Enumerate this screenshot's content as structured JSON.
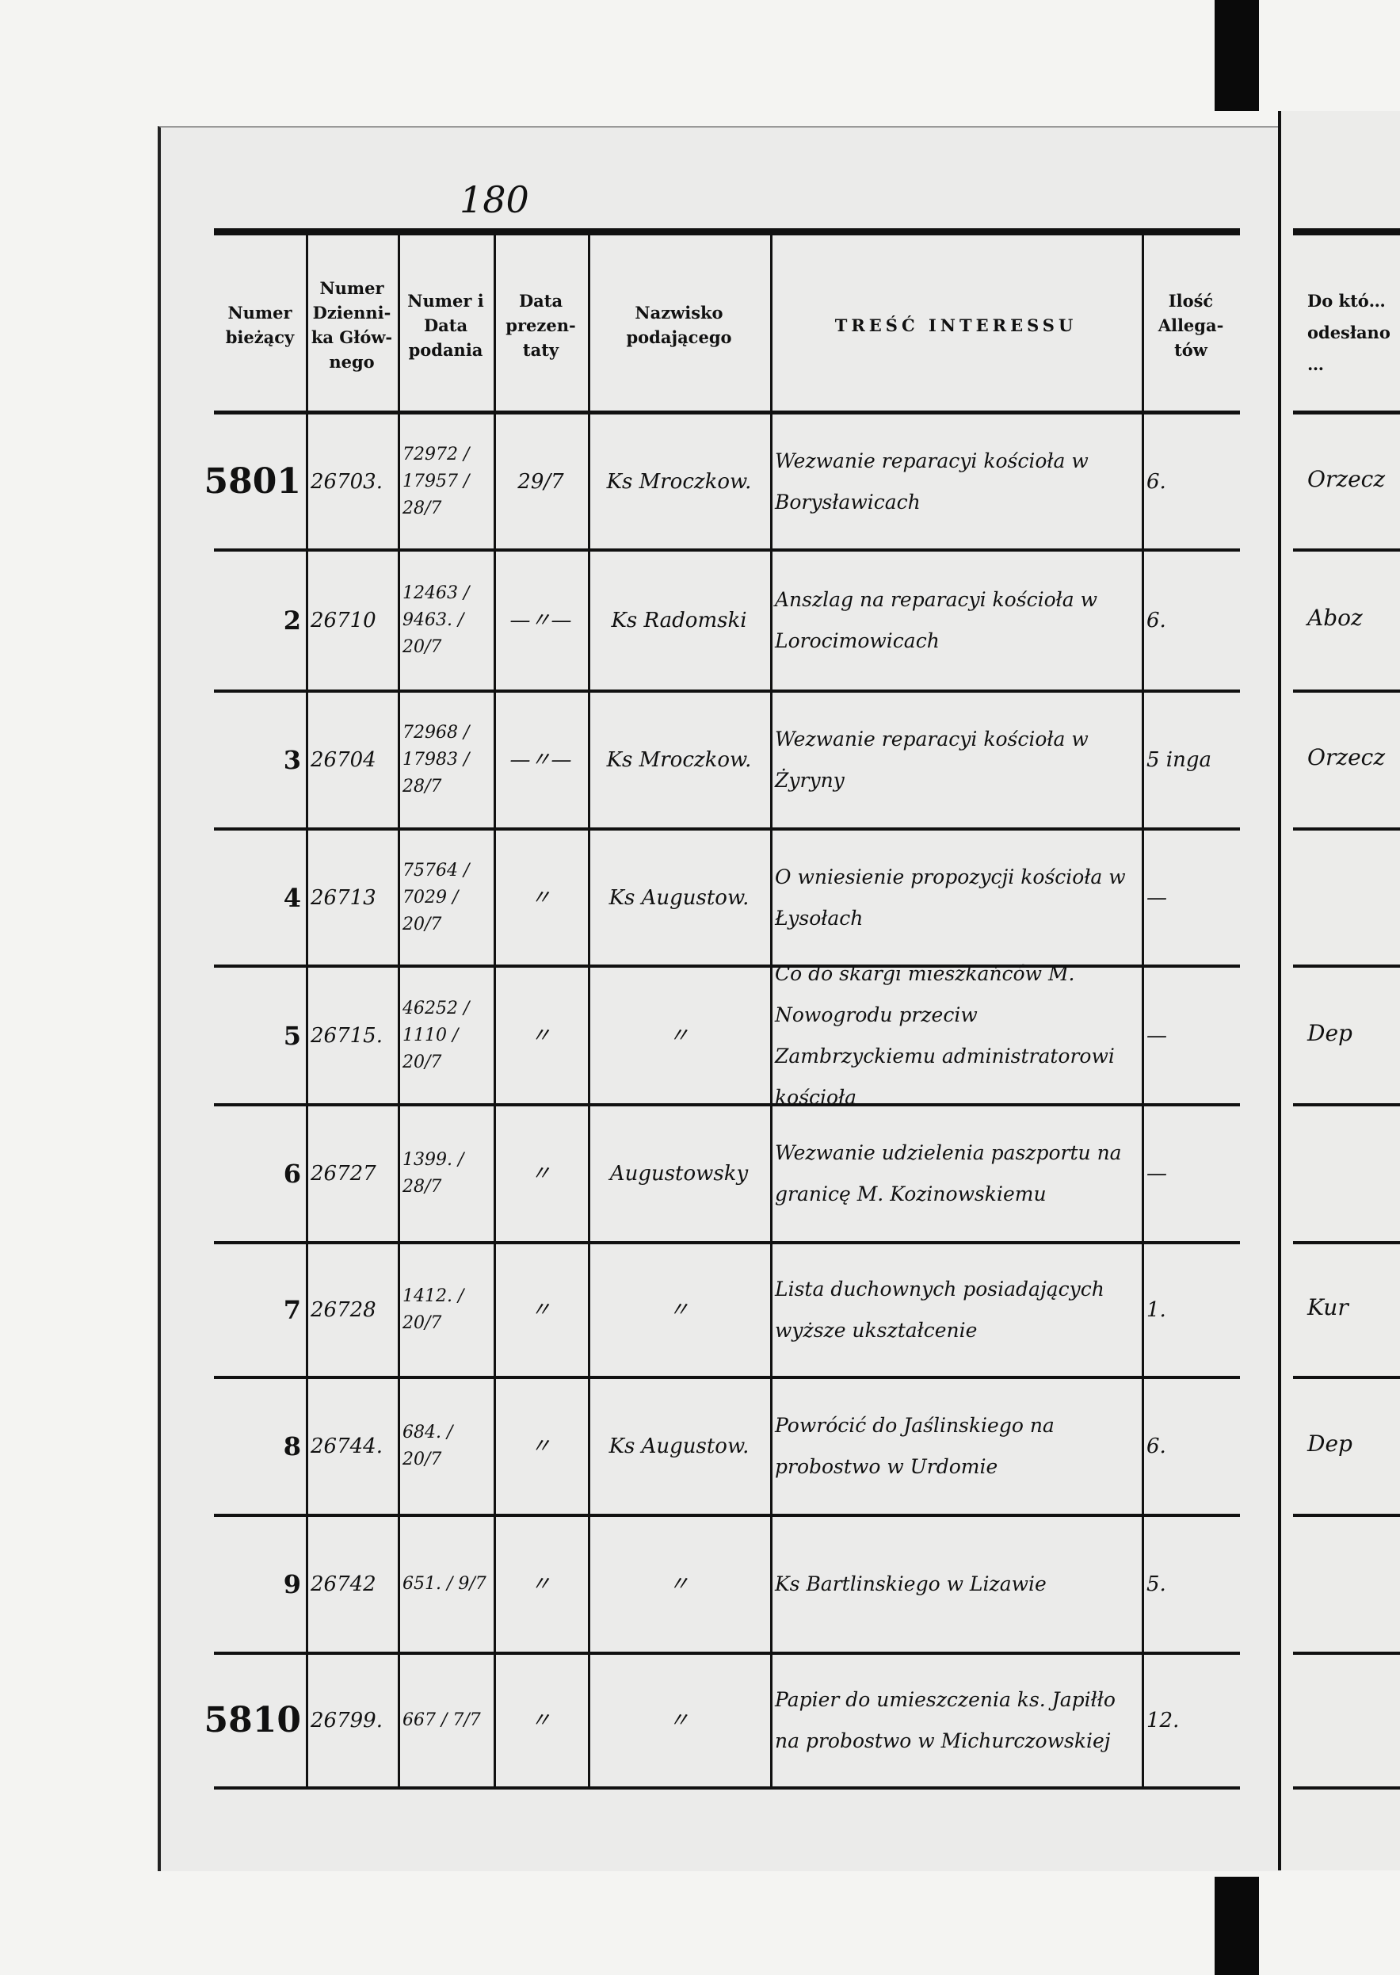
{
  "page_number": "180",
  "headers": [
    "Numer bieżący",
    "Numer Dzienni-ka Głów-nego",
    "Numer i Data podania",
    "Data prezen-taty",
    "Nazwisko podającego",
    "TREŚĆ INTERESSU",
    "Ilość Allega-tów"
  ],
  "right_page_header": "Do któ… odesłano …",
  "rows": [
    {
      "nr": "5801",
      "dz": "26703.",
      "nd": "72972 / 17957 / 28/7",
      "dp": "29/7",
      "name": "Ks Mroczkow.",
      "tresc": "Wezwanie reparacyi kościoła w Borysławicach",
      "alleg": "6.",
      "right": "Orzecz"
    },
    {
      "nr": "2",
      "dz": "26710",
      "nd": "12463 / 9463. / 20/7",
      "dp": "—〃—",
      "name": "Ks Radomski",
      "tresc": "Anszlag na reparacyi kościoła w Lorocimowicach",
      "alleg": "6.",
      "right": "Aboz"
    },
    {
      "nr": "3",
      "dz": "26704",
      "nd": "72968 / 17983 / 28/7",
      "dp": "—〃—",
      "name": "Ks Mroczkow.",
      "tresc": "Wezwanie reparacyi kościoła w Żyryny",
      "alleg": "5 inga",
      "right": "Orzecz"
    },
    {
      "nr": "4",
      "dz": "26713",
      "nd": "75764 / 7029 / 20/7",
      "dp": "〃",
      "name": "Ks Augustow.",
      "tresc": "O wniesienie propozycji kościoła w Łysołach",
      "alleg": "—",
      "right": ""
    },
    {
      "nr": "5",
      "dz": "26715.",
      "nd": "46252 / 1110 / 20/7",
      "dp": "〃",
      "name": "〃",
      "tresc": "Co do skargi mieszkańców M. Nowogrodu przeciw Zambrzyckiemu administratorowi kościoła",
      "alleg": "—",
      "right": "Dep"
    },
    {
      "nr": "6",
      "dz": "26727",
      "nd": "1399. / 28/7",
      "dp": "〃",
      "name": "Augustowsky",
      "tresc": "Wezwanie udzielenia paszportu na granicę M. Kozinowskiemu",
      "alleg": "—",
      "right": ""
    },
    {
      "nr": "7",
      "dz": "26728",
      "nd": "1412. / 20/7",
      "dp": "〃",
      "name": "〃",
      "tresc": "Lista duchownych posiadających wyższe ukształcenie",
      "alleg": "1.",
      "right": "Kur"
    },
    {
      "nr": "8",
      "dz": "26744.",
      "nd": "684. / 20/7",
      "dp": "〃",
      "name": "Ks Augustow.",
      "tresc": "Powrócić do Jaślinskiego na probostwo w Urdomie",
      "alleg": "6.",
      "right": "Dep"
    },
    {
      "nr": "9",
      "dz": "26742",
      "nd": "651. / 9/7",
      "dp": "〃",
      "name": "〃",
      "tresc": "Ks Bartlinskiego w Lizawie",
      "alleg": "5.",
      "right": ""
    },
    {
      "nr": "5810",
      "dz": "26799.",
      "nd": "667 / 7/7",
      "dp": "〃",
      "name": "〃",
      "tresc": "Papier do umieszczenia ks. Japiłło na probostwo w Michurczowskiej",
      "alleg": "12.",
      "right": ""
    }
  ]
}
